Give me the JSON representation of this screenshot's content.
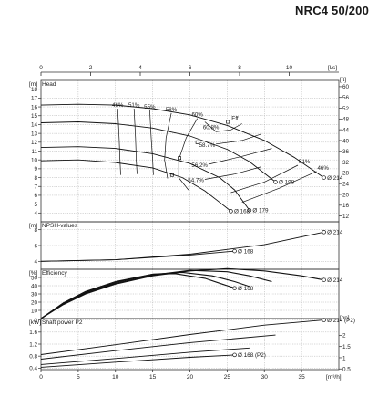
{
  "title": "NRC4 50/200",
  "chart_data": {
    "type": "line",
    "title": "NRC4 50/200",
    "top_axis": {
      "unit": "[l/s]",
      "range": [
        0,
        12
      ],
      "ticks": [
        0,
        2,
        4,
        6,
        8,
        10
      ]
    },
    "bottom_axis": {
      "unit": "[m³/h]",
      "range": [
        0,
        40
      ],
      "ticks": [
        0,
        5,
        10,
        15,
        20,
        25,
        30,
        35
      ]
    },
    "panels": [
      {
        "id": "head",
        "label": "Head",
        "unit_left": "[m]",
        "unit_right": "[ft]",
        "ylim": [
          3,
          19
        ],
        "ticks_left": [
          4,
          5,
          6,
          7,
          8,
          9,
          10,
          11,
          12,
          13,
          14,
          15,
          16,
          17,
          18
        ],
        "ticks_right": [
          12,
          16,
          20,
          24,
          28,
          32,
          36,
          40,
          44,
          48,
          52,
          56,
          60
        ],
        "ft_per_m": 3.2808,
        "series": [
          {
            "name": "Ø 214",
            "points": [
              [
                0,
                16.2
              ],
              [
                5,
                16.3
              ],
              [
                10,
                16.2
              ],
              [
                15,
                15.8
              ],
              [
                20,
                15.1
              ],
              [
                25,
                13.9
              ],
              [
                30,
                12.2
              ],
              [
                34,
                10.3
              ],
              [
                38,
                8.0
              ]
            ]
          },
          {
            "name": "Ø 198",
            "points": [
              [
                0,
                14.2
              ],
              [
                5,
                14.3
              ],
              [
                10,
                14.1
              ],
              [
                15,
                13.6
              ],
              [
                20,
                12.7
              ],
              [
                25,
                11.2
              ],
              [
                28,
                9.8
              ],
              [
                31.5,
                7.5
              ]
            ]
          },
          {
            "name": "Ø 179",
            "points": [
              [
                0,
                11.4
              ],
              [
                5,
                11.5
              ],
              [
                10,
                11.3
              ],
              [
                15,
                10.7
              ],
              [
                20,
                9.6
              ],
              [
                24,
                8.0
              ],
              [
                26,
                6.6
              ],
              [
                28,
                4.3
              ]
            ]
          },
          {
            "name": "Ø 168",
            "points": [
              [
                0,
                9.9
              ],
              [
                5,
                10.0
              ],
              [
                10,
                9.7
              ],
              [
                15,
                9.1
              ],
              [
                19,
                8.0
              ],
              [
                22,
                6.5
              ],
              [
                24,
                5.2
              ],
              [
                25.5,
                4.2
              ]
            ]
          }
        ],
        "efficiency_contours": [
          {
            "name": "46%",
            "points": [
              [
                10.3,
                15.8
              ],
              [
                10.5,
                12.5
              ],
              [
                10.6,
                10.0
              ],
              [
                10.7,
                8.3
              ]
            ]
          },
          {
            "name": "51%",
            "points": [
              [
                12.5,
                15.8
              ],
              [
                12.7,
                12.5
              ],
              [
                12.8,
                10.0
              ],
              [
                12.9,
                8.4
              ]
            ]
          },
          {
            "name": "55%",
            "points": [
              [
                14.6,
                15.6
              ],
              [
                14.8,
                12.5
              ],
              [
                15.0,
                10.0
              ],
              [
                15.1,
                8.3
              ]
            ]
          },
          {
            "name": "58%",
            "points": [
              [
                17.5,
                15.3
              ],
              [
                16.8,
                12.5
              ],
              [
                16.6,
                10.0
              ],
              [
                17.0,
                7.9
              ]
            ]
          },
          {
            "name": "60%",
            "points": [
              [
                21.0,
                14.7
              ],
              [
                19.5,
                12.5
              ],
              [
                18.5,
                10.0
              ],
              [
                18.5,
                8.0
              ],
              [
                19.8,
                6.6
              ]
            ]
          },
          {
            "name": "60.8%",
            "points": [
              [
                22.0,
                14.3
              ],
              [
                23.5,
                13.2
              ],
              [
                25.5,
                13.4
              ],
              [
                27.0,
                14.1
              ]
            ]
          },
          {
            "name": "58.7%",
            "points": [
              [
                23.5,
                11.8
              ],
              [
                27.0,
                12.2
              ],
              [
                29.5,
                12.9
              ]
            ]
          },
          {
            "name": "56.2%",
            "points": [
              [
                22.5,
                9.5
              ],
              [
                27.0,
                10.4
              ],
              [
                31.0,
                11.3
              ]
            ]
          },
          {
            "name": "54.7%",
            "points": [
              [
                22.0,
                7.8
              ],
              [
                26.0,
                8.4
              ],
              [
                29.5,
                9.2
              ]
            ]
          },
          {
            "name": "51%",
            "points": [
              [
                25.5,
                6.3
              ],
              [
                30.0,
                7.5
              ],
              [
                34.5,
                9.4
              ]
            ]
          },
          {
            "name": "46%",
            "points": [
              [
                27.0,
                5.2
              ],
              [
                32.0,
                6.8
              ],
              [
                37.0,
                8.7
              ]
            ]
          }
        ],
        "eff_label": "Eff",
        "eff_points": [
          [
            25.1,
            14.3
          ],
          [
            21.0,
            12.0
          ],
          [
            18.6,
            10.2
          ],
          [
            17.6,
            8.3
          ]
        ]
      },
      {
        "id": "npsh",
        "label": "NPSH-values",
        "unit_left": "[m]",
        "ylim": [
          3,
          9
        ],
        "ticks_left": [
          4,
          6,
          8
        ],
        "series": [
          {
            "name": "Ø 214",
            "points": [
              [
                0,
                4.0
              ],
              [
                10,
                4.2
              ],
              [
                20,
                4.9
              ],
              [
                30,
                6.1
              ],
              [
                38,
                7.7
              ]
            ]
          },
          {
            "name": "Ø 168",
            "points": [
              [
                0,
                4.0
              ],
              [
                10,
                4.2
              ],
              [
                20,
                4.8
              ],
              [
                26,
                5.3
              ]
            ]
          }
        ]
      },
      {
        "id": "efficiency",
        "label": "Efficiency",
        "unit_left": "[%]",
        "ylim": [
          0,
          60
        ],
        "ticks_left": [
          10,
          20,
          30,
          40,
          50
        ],
        "series": [
          {
            "name": "Ø 214",
            "points": [
              [
                0,
                0
              ],
              [
                3,
                17
              ],
              [
                6,
                30
              ],
              [
                10,
                42
              ],
              [
                15,
                52
              ],
              [
                20,
                58
              ],
              [
                25,
                60.8
              ],
              [
                30,
                58
              ],
              [
                35,
                52
              ],
              [
                38,
                47
              ]
            ]
          },
          {
            "name": "Ø 198",
            "points": [
              [
                0,
                0
              ],
              [
                3,
                18
              ],
              [
                6,
                31
              ],
              [
                10,
                43
              ],
              [
                15,
                53
              ],
              [
                20,
                58.7
              ],
              [
                25,
                57
              ],
              [
                28,
                52
              ],
              [
                31,
                45
              ]
            ]
          },
          {
            "name": "Ø 179",
            "points": [
              [
                0,
                0
              ],
              [
                3,
                18
              ],
              [
                6,
                32
              ],
              [
                10,
                44
              ],
              [
                15,
                54
              ],
              [
                19,
                56.2
              ],
              [
                23,
                52
              ],
              [
                26,
                45
              ],
              [
                28,
                39
              ]
            ]
          },
          {
            "name": "Ø 168",
            "points": [
              [
                0,
                0
              ],
              [
                3,
                19
              ],
              [
                6,
                33
              ],
              [
                10,
                45
              ],
              [
                15,
                54
              ],
              [
                18,
                54.7
              ],
              [
                22,
                49
              ],
              [
                24,
                43
              ],
              [
                26,
                37
              ]
            ]
          }
        ]
      },
      {
        "id": "power",
        "label": "Shaft power P2",
        "unit_left": "[kW]",
        "unit_right": "[hp]",
        "ylim": [
          0.35,
          2.05
        ],
        "ticks_left": [
          0.4,
          0.8,
          1.2,
          1.6,
          2
        ],
        "ticks_right": [
          0.5,
          1,
          1.5,
          2
        ],
        "hp_per_kw": 1.341,
        "series": [
          {
            "name": "Ø 214 (P2)",
            "points": [
              [
                0,
                0.85
              ],
              [
                10,
                1.18
              ],
              [
                20,
                1.52
              ],
              [
                30,
                1.83
              ],
              [
                38,
                2.0
              ]
            ]
          },
          {
            "name": "Ø 198 (P2)",
            "points": [
              [
                0,
                0.7
              ],
              [
                10,
                0.98
              ],
              [
                20,
                1.25
              ],
              [
                31.5,
                1.5
              ]
            ]
          },
          {
            "name": "Ø 179 (P2)",
            "points": [
              [
                0,
                0.52
              ],
              [
                10,
                0.72
              ],
              [
                20,
                0.93
              ],
              [
                28,
                1.07
              ]
            ]
          },
          {
            "name": "Ø 168 (P2)",
            "points": [
              [
                0,
                0.43
              ],
              [
                10,
                0.6
              ],
              [
                20,
                0.76
              ],
              [
                26,
                0.84
              ]
            ]
          }
        ]
      }
    ]
  }
}
